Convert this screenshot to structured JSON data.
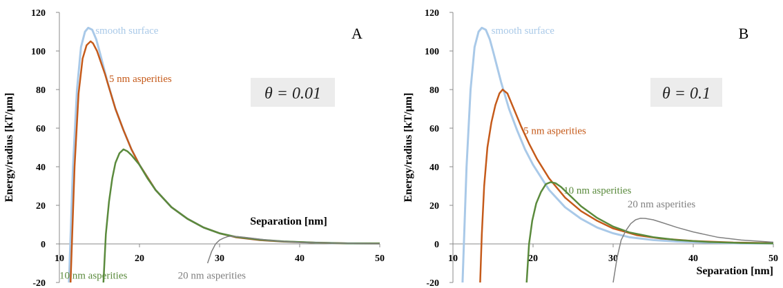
{
  "chart_data": [
    {
      "panel": "A",
      "type": "line",
      "annotation": "θ = 0.01",
      "xlabel": "Separation [nm]",
      "ylabel": "Energy/radius [kT/μm]",
      "xlim": [
        10,
        50
      ],
      "ylim": [
        -20,
        120
      ],
      "xticks": [
        10,
        20,
        30,
        40,
        50
      ],
      "yticks": [
        -20,
        0,
        20,
        40,
        60,
        80,
        100,
        120
      ],
      "grid": false,
      "series": [
        {
          "name": "smooth surface",
          "color": "#a9c9e8",
          "x": [
            11.2,
            11.7,
            12.2,
            12.7,
            13.2,
            13.6,
            14.1,
            14.6,
            15.0,
            15.5,
            16.0,
            17.0,
            18.0,
            19.0,
            20.0,
            22.0,
            24.0,
            26.0,
            28.0,
            30.0,
            32.0,
            35.0,
            38.0,
            42.0,
            46.0,
            50.0
          ],
          "y": [
            -20,
            40,
            80,
            102,
            110,
            112,
            111,
            106,
            100,
            92,
            84,
            70,
            59,
            49,
            41,
            28,
            19,
            13,
            8.5,
            5.5,
            3.5,
            2,
            1.2,
            0.6,
            0.3,
            0.2
          ]
        },
        {
          "name": "5 nm asperities",
          "color": "#c55a1a",
          "x": [
            11.4,
            11.9,
            12.4,
            12.9,
            13.4,
            13.9,
            14.2,
            14.7,
            15.2,
            15.7,
            16.2,
            17.0,
            18.0,
            19.0,
            20.0,
            22.0,
            24.0,
            26.0,
            28.0,
            30.0,
            32.0,
            35.0,
            38.0,
            42.0,
            46.0,
            50.0
          ],
          "y": [
            -20,
            40,
            78,
            96,
            103,
            105,
            104,
            100,
            94,
            88,
            81,
            70,
            59,
            49,
            41,
            28,
            19,
            13,
            8.5,
            5.5,
            3.5,
            2,
            1.2,
            0.6,
            0.3,
            0.2
          ]
        },
        {
          "name": "10 nm asperities",
          "color": "#5a8a3c",
          "x": [
            15.5,
            15.8,
            16.2,
            16.6,
            17.0,
            17.5,
            18.0,
            18.5,
            19.0,
            20.0,
            21.0,
            22.0,
            24.0,
            26.0,
            28.0,
            30.0,
            32.0,
            35.0,
            38.0,
            42.0,
            46.0,
            50.0
          ],
          "y": [
            -20,
            5,
            22,
            34,
            42,
            47,
            49,
            48,
            46,
            41,
            34,
            28,
            19,
            13,
            8.5,
            5.5,
            3.7,
            2.2,
            1.3,
            0.6,
            0.3,
            0.2
          ]
        },
        {
          "name": "20 nm asperities",
          "color": "#808080",
          "x": [
            28.5,
            29.0,
            29.5,
            30.0,
            30.5,
            31.0,
            31.5,
            32.0,
            33.0,
            34.0,
            36.0,
            38.0,
            40.0,
            44.0,
            50.0
          ],
          "y": [
            -10,
            -4,
            0,
            2,
            3,
            3.8,
            4.0,
            3.9,
            3.5,
            3.0,
            2.0,
            1.3,
            0.8,
            0.4,
            0.1
          ]
        }
      ],
      "labels": [
        {
          "series": 0,
          "text": "smooth surface",
          "at": [
            14.5,
            109
          ]
        },
        {
          "series": 1,
          "text": "5 nm asperities",
          "at": [
            16.2,
            84
          ]
        },
        {
          "series": 2,
          "text": "10 nm asperities",
          "at": [
            10.0,
            -18
          ]
        },
        {
          "series": 3,
          "text": "20 nm asperities",
          "at": [
            24.8,
            -18
          ]
        }
      ]
    },
    {
      "panel": "B",
      "type": "line",
      "annotation": "θ = 0.1",
      "xlabel": "Separation [nm]",
      "ylabel": "Energy/radius [kT/μm]",
      "xlim": [
        10,
        50
      ],
      "ylim": [
        -20,
        120
      ],
      "xticks": [
        10,
        20,
        30,
        40,
        50
      ],
      "yticks": [
        -20,
        0,
        20,
        40,
        60,
        80,
        100,
        120
      ],
      "grid": false,
      "series": [
        {
          "name": "smooth surface",
          "color": "#a9c9e8",
          "x": [
            11.2,
            11.7,
            12.2,
            12.7,
            13.2,
            13.6,
            14.1,
            14.6,
            15.0,
            15.5,
            16.0,
            17.0,
            18.0,
            19.0,
            20.0,
            22.0,
            24.0,
            26.0,
            28.0,
            30.0,
            32.0,
            35.0,
            38.0,
            42.0,
            46.0,
            50.0
          ],
          "y": [
            -20,
            40,
            80,
            102,
            110,
            112,
            111,
            106,
            100,
            92,
            84,
            70,
            59,
            49,
            41,
            28,
            19,
            13,
            8.5,
            5.5,
            3.5,
            2,
            1.2,
            0.6,
            0.3,
            0.2
          ]
        },
        {
          "name": "5 nm asperities",
          "color": "#c55a1a",
          "x": [
            13.4,
            13.6,
            13.9,
            14.3,
            14.8,
            15.3,
            15.8,
            16.2,
            16.8,
            17.5,
            18.5,
            19.5,
            20.5,
            22.0,
            24.0,
            26.0,
            28.0,
            30.0,
            33.0,
            36.0,
            40.0,
            45.0,
            50.0
          ],
          "y": [
            -20,
            5,
            30,
            50,
            63,
            72,
            78,
            80,
            78,
            71,
            61,
            52,
            44,
            34,
            24,
            17,
            12,
            8,
            4.5,
            2.8,
            1.5,
            0.7,
            0.4
          ]
        },
        {
          "name": "10 nm asperities",
          "color": "#5a8a3c",
          "x": [
            19.2,
            19.5,
            19.9,
            20.4,
            21.0,
            21.6,
            22.2,
            22.8,
            23.5,
            24.5,
            26.0,
            28.0,
            30.0,
            32.0,
            35.0,
            38.0,
            42.0,
            46.0,
            50.0
          ],
          "y": [
            -20,
            0,
            12,
            21,
            27,
            31,
            32,
            31.5,
            29.5,
            25.5,
            19.5,
            13.5,
            9,
            6,
            3.5,
            2,
            1,
            0.5,
            0.3
          ]
        },
        {
          "name": "20 nm asperities",
          "color": "#808080",
          "x": [
            30.0,
            30.5,
            31.0,
            31.6,
            32.2,
            32.8,
            33.4,
            34.0,
            35.0,
            36.0,
            38.0,
            40.0,
            43.0,
            46.0,
            50.0
          ],
          "y": [
            -20,
            -7,
            2,
            7,
            10.5,
            12.5,
            13.3,
            13.2,
            12.5,
            11.2,
            8.5,
            6.2,
            3.5,
            2,
            0.9
          ]
        }
      ],
      "labels": [
        {
          "series": 0,
          "text": "smooth surface",
          "at": [
            14.8,
            109
          ]
        },
        {
          "series": 1,
          "text": "5 nm asperities",
          "at": [
            18.8,
            57
          ]
        },
        {
          "series": 2,
          "text": "10 nm asperities",
          "at": [
            23.8,
            26
          ]
        },
        {
          "series": 3,
          "text": "20 nm asperities",
          "at": [
            31.8,
            19
          ]
        }
      ]
    }
  ]
}
